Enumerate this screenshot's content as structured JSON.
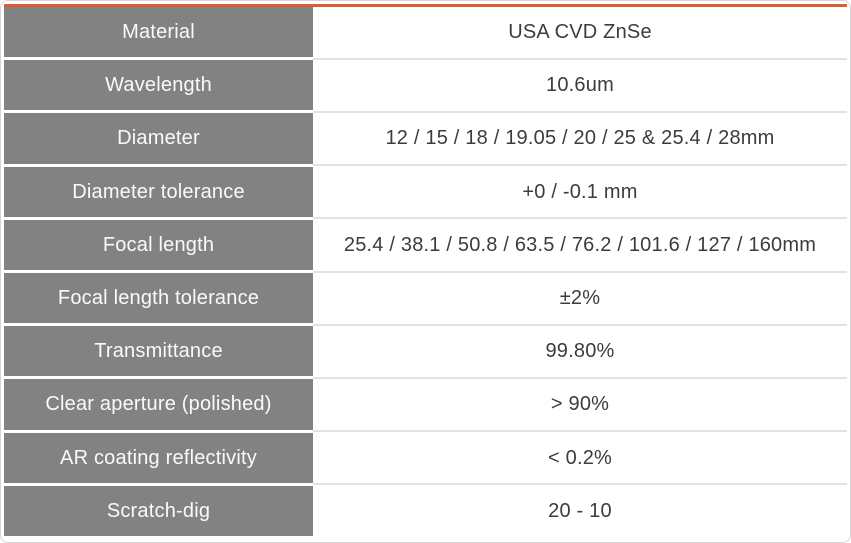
{
  "table": {
    "rows": [
      {
        "label": "Material",
        "value": "USA CVD ZnSe"
      },
      {
        "label": "Wavelength",
        "value": "10.6um"
      },
      {
        "label": "Diameter",
        "value": "12 / 15 / 18 / 19.05 / 20 / 25 & 25.4 / 28mm"
      },
      {
        "label": "Diameter tolerance",
        "value": "+0 / -0.1 mm"
      },
      {
        "label": "Focal length",
        "value": "25.4 / 38.1 / 50.8 / 63.5 / 76.2 / 101.6 / 127 / 160mm"
      },
      {
        "label": "Focal length tolerance",
        "value": "±2%"
      },
      {
        "label": "Transmittance",
        "value": "99.80%"
      },
      {
        "label": "Clear aperture (polished)",
        "value": "> 90%"
      },
      {
        "label": "AR coating reflectivity",
        "value": "< 0.2%"
      },
      {
        "label": "Scratch-dig",
        "value": "20 - 10"
      }
    ]
  },
  "colors": {
    "accent_orange": "#D95F33",
    "label_bg_gray": "#828282",
    "label_text": "#FAFAFA",
    "value_text": "#3C3C3C",
    "separator_light": "#E2E2E2",
    "frame_border": "#D4D4D4",
    "background": "#FFFFFF"
  }
}
